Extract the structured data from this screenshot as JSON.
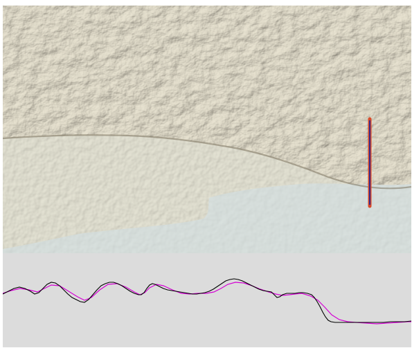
{
  "map": {
    "layers": [
      "hillshade-relief",
      "valley-basin",
      "lake-shore"
    ],
    "colors": {
      "upland": "#bdb5a0",
      "upland_shadow": "#8e8673",
      "upland_light": "#e2dccb",
      "basin": "#bfb9a3",
      "water": "#a9b5ad",
      "water_light": "#c3cbc2"
    },
    "transect": {
      "label": "",
      "colors": [
        "#d84a2a",
        "#3a2a8c"
      ]
    }
  },
  "profile": {
    "background": "#dcdcdc",
    "series": [
      {
        "name": "",
        "color": "#000000"
      },
      {
        "name": "",
        "color": "#d400d4"
      }
    ]
  }
}
